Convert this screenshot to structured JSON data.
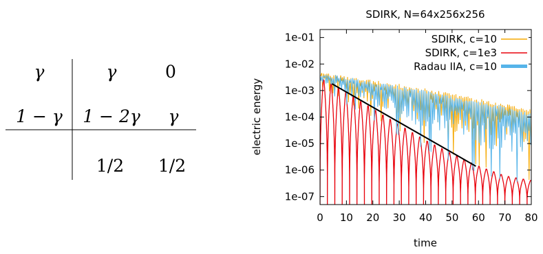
{
  "butcher_tableau": {
    "rows": [
      {
        "c": "γ",
        "a": [
          "γ",
          "0"
        ]
      },
      {
        "c": "1 − γ",
        "a": [
          "1 − 2γ",
          "γ"
        ]
      }
    ],
    "b": [
      "1/2",
      "1/2"
    ]
  },
  "chart_data": {
    "type": "line",
    "title": "SDIRK, N=64x256x256",
    "xlabel": "time",
    "ylabel": "electric energy",
    "xlim": [
      0,
      80
    ],
    "ylim": [
      5e-08,
      0.2
    ],
    "yscale": "log",
    "x_ticks": [
      "0",
      "10",
      "20",
      "30",
      "40",
      "50",
      "60",
      "70",
      "80"
    ],
    "y_ticks": [
      "1e-01",
      "1e-02",
      "1e-03",
      "1e-04",
      "1e-05",
      "1e-06",
      "1e-07"
    ],
    "legend_position": "top-right",
    "series": [
      {
        "name": "SDIRK, c=10",
        "color": "#f5a800",
        "style": "dense-oscillation",
        "x": [
          0,
          10,
          20,
          30,
          40,
          50,
          60,
          70,
          80
        ],
        "upper": [
          0.005,
          0.0035,
          0.0025,
          0.0018,
          0.0012,
          0.0008,
          0.0005,
          0.00032,
          0.0002
        ],
        "lower": [
          0.0015,
          0.0004,
          0.0001,
          3e-05,
          1e-05,
          4e-06,
          1.5e-06,
          8e-07,
          4e-07
        ]
      },
      {
        "name": "SDIRK, c=1e3",
        "color": "#e8000b",
        "style": "oscillation",
        "x": [
          0,
          10,
          20,
          30,
          40,
          50,
          60,
          70,
          80
        ],
        "upper": [
          0.003,
          0.0008,
          0.0002,
          5e-05,
          1.3e-05,
          4e-06,
          1.4e-06,
          6e-07,
          4e-07
        ],
        "lower": [
          5e-08,
          5e-08,
          5e-08,
          5e-08,
          5e-08,
          5e-08,
          5e-08,
          5e-08,
          5e-08
        ],
        "period": 2.8
      },
      {
        "name": "Radau IIA, c=10",
        "color": "#56b4e9",
        "style": "dense-oscillation",
        "x": [
          0,
          10,
          20,
          30,
          40,
          50,
          60,
          70,
          80
        ],
        "upper": [
          0.005,
          0.0033,
          0.0022,
          0.0015,
          0.001,
          0.0006,
          0.0004,
          0.00025,
          0.00015
        ],
        "lower": [
          0.0014,
          0.0003,
          8e-05,
          2e-05,
          6e-06,
          2e-06,
          8e-07,
          4e-07,
          3e-07
        ]
      }
    ],
    "reference_line": {
      "color": "#000000",
      "x": [
        4.5,
        59
      ],
      "y": [
        0.0018,
        1.4e-06
      ]
    }
  }
}
